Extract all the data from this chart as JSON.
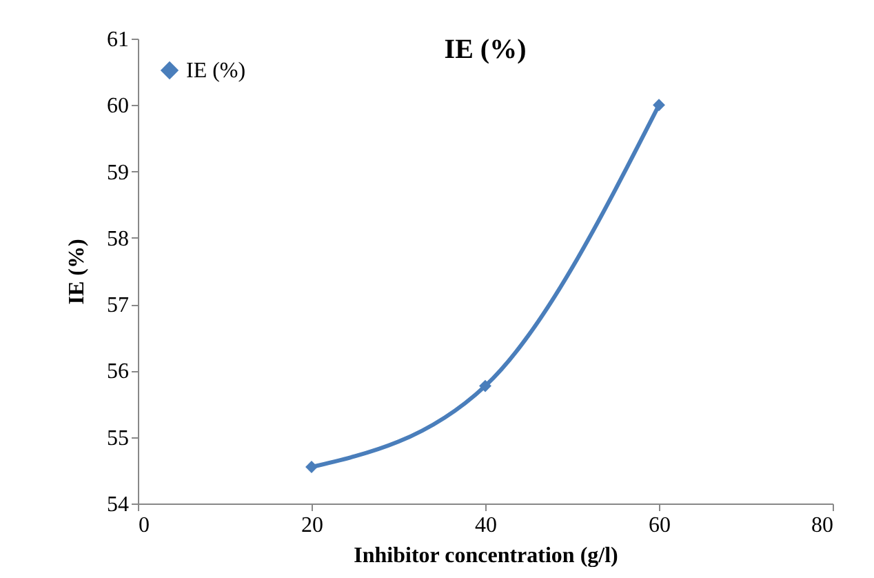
{
  "chart_data": {
    "type": "line",
    "title": "IE (%)",
    "xlabel": "Inhibitor concentration (g/l)",
    "ylabel": "IE (%)",
    "x": [
      20,
      40,
      60
    ],
    "series": [
      {
        "name": "IE (%)",
        "color": "#4a7ebb",
        "values": [
          54.55,
          55.77,
          60
        ]
      }
    ],
    "xlim": [
      0,
      80
    ],
    "xticks": [
      0,
      20,
      40,
      60,
      80
    ],
    "ylim": [
      54,
      61
    ],
    "yticks": [
      54,
      55,
      56,
      57,
      58,
      59,
      60,
      61
    ],
    "grid": false,
    "legend": "top left",
    "marker": "diamond",
    "line_style": "solid"
  }
}
